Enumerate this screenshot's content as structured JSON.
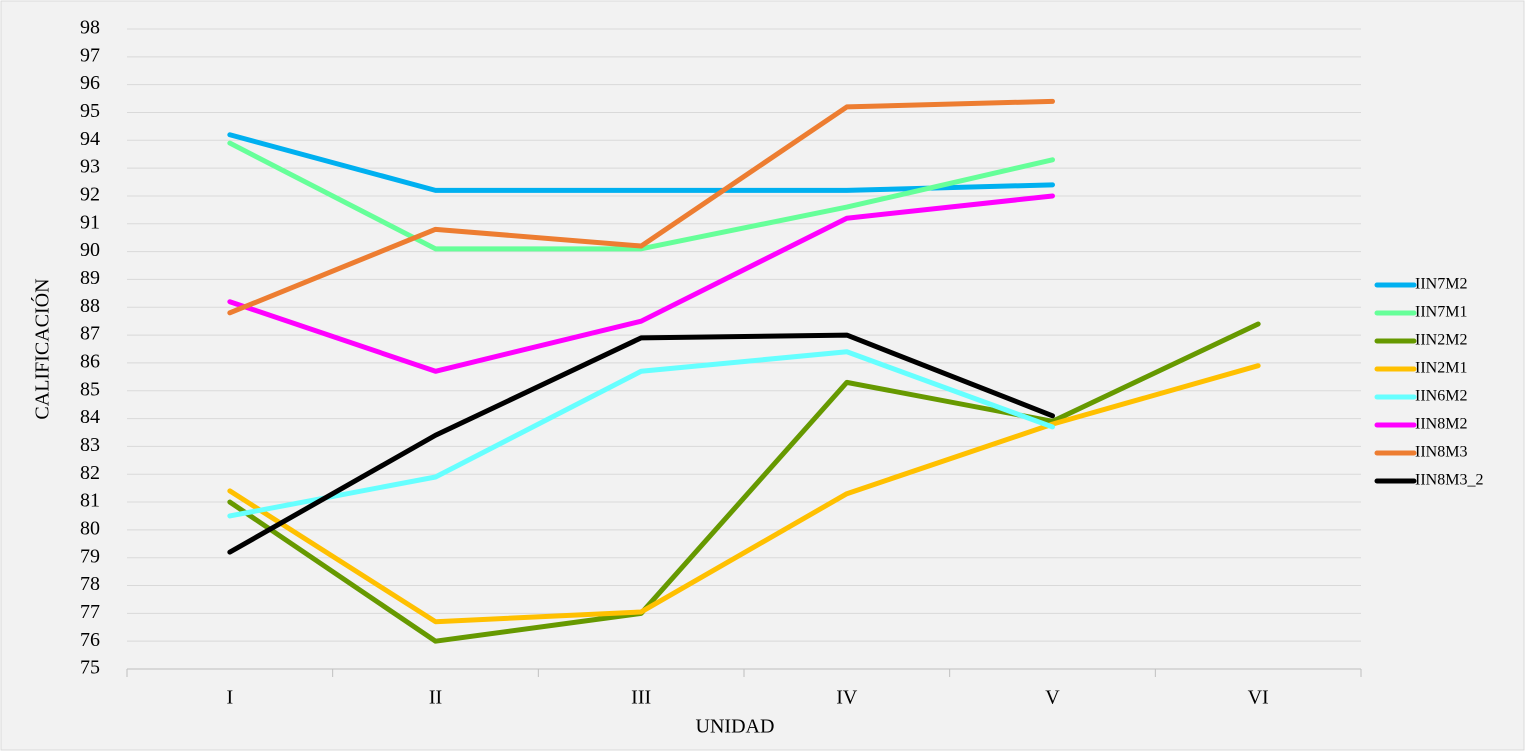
{
  "chart_data": {
    "type": "line",
    "xlabel": "UNIDAD",
    "ylabel": "CALIFICACIÓN",
    "categories": [
      "I",
      "II",
      "III",
      "IV",
      "V",
      "VI"
    ],
    "ylim": [
      75,
      98
    ],
    "yticks": [
      75,
      76,
      77,
      78,
      79,
      80,
      81,
      82,
      83,
      84,
      85,
      86,
      87,
      88,
      89,
      90,
      91,
      92,
      93,
      94,
      95,
      96,
      97,
      98
    ],
    "grid": true,
    "legend": "right",
    "series": [
      {
        "name": "IIN7M2",
        "color": "#00b0f0",
        "values": [
          94.2,
          92.2,
          92.2,
          92.2,
          92.4,
          null
        ]
      },
      {
        "name": "IIN7M1",
        "color": "#66ff99",
        "values": [
          93.9,
          90.1,
          90.1,
          91.6,
          93.3,
          null
        ]
      },
      {
        "name": "IIN2M2",
        "color": "#669900",
        "values": [
          81.0,
          76.0,
          77.0,
          85.3,
          83.9,
          87.4
        ]
      },
      {
        "name": "IIN2M1",
        "color": "#ffc000",
        "values": [
          81.4,
          76.7,
          77.05,
          81.3,
          83.8,
          85.9
        ]
      },
      {
        "name": "IIN6M2",
        "color": "#66ffff",
        "values": [
          80.5,
          81.9,
          85.7,
          86.4,
          83.7,
          null
        ]
      },
      {
        "name": "IIN8M2",
        "color": "#ff00ff",
        "values": [
          88.2,
          85.7,
          87.5,
          91.2,
          92.0,
          null
        ]
      },
      {
        "name": "IIN8M3",
        "color": "#ed7d31",
        "values": [
          87.8,
          90.8,
          90.2,
          95.2,
          95.4,
          null
        ]
      },
      {
        "name": "IIN8M3_2",
        "color": "#000000",
        "values": [
          79.2,
          83.4,
          86.9,
          87.0,
          84.1,
          null
        ]
      }
    ]
  }
}
